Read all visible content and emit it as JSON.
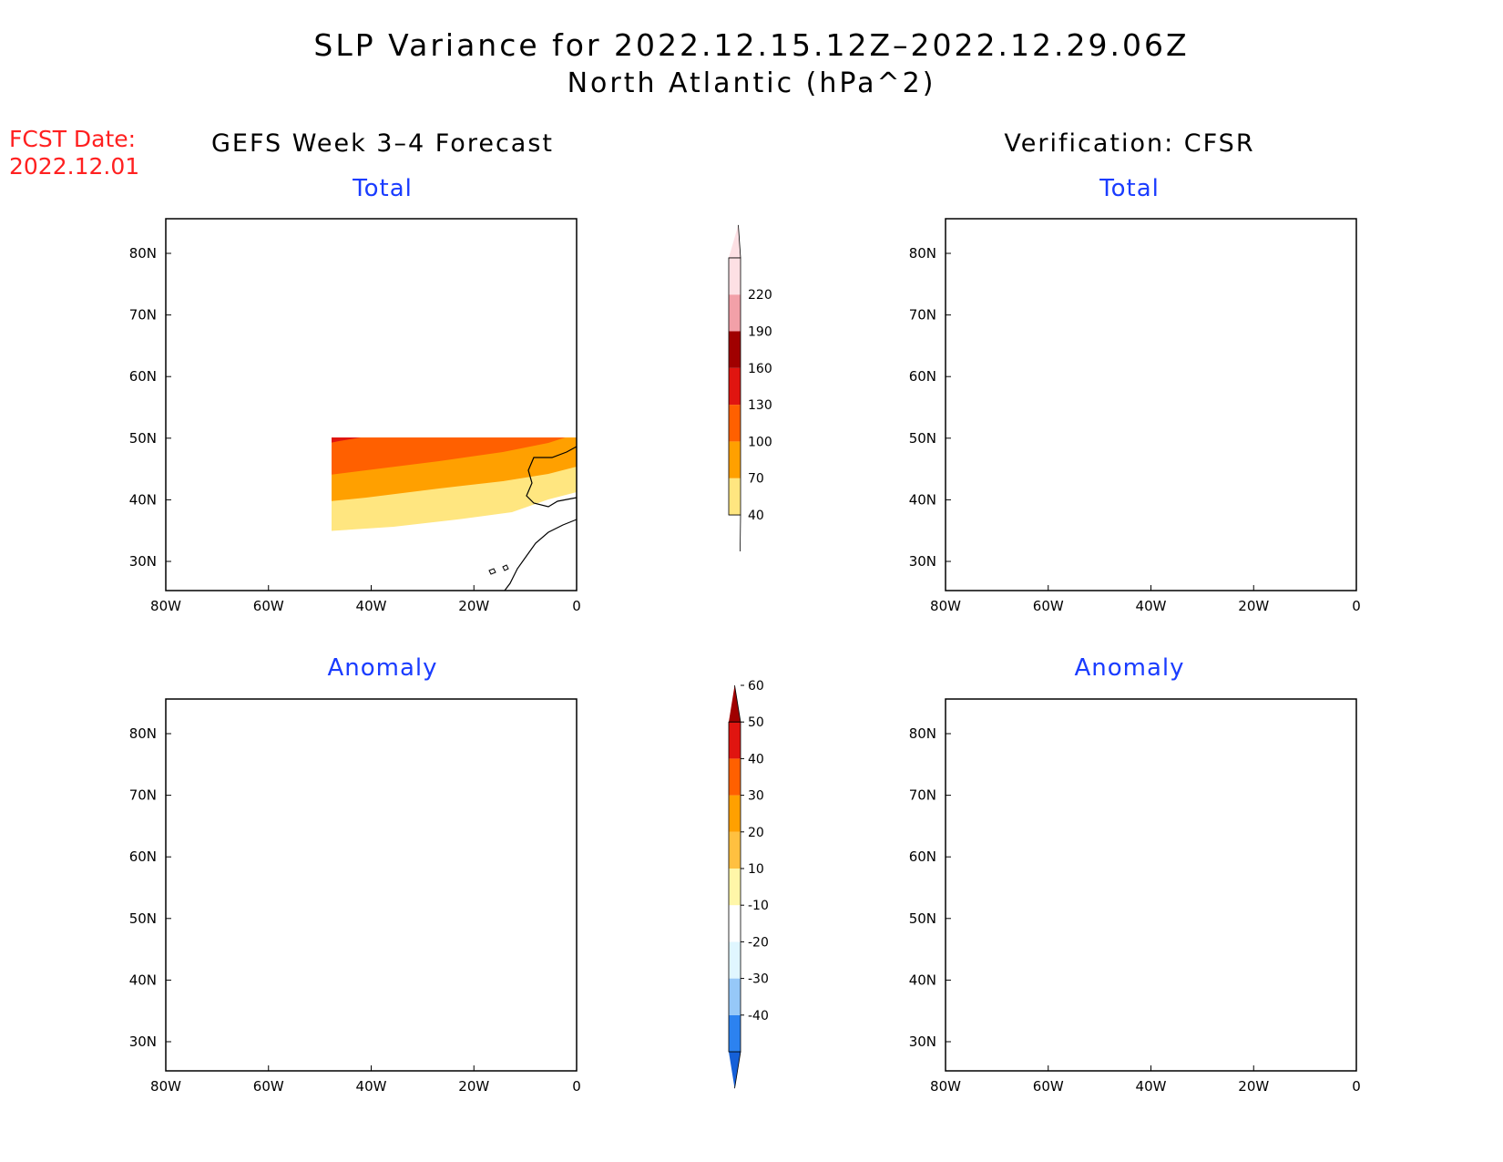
{
  "title": "SLP Variance for 2022.12.15.12Z–2022.12.29.06Z",
  "subtitle": "North Atlantic (hPa^2)",
  "fcst_date": {
    "label": "FCST Date:",
    "value": "2022.12.01"
  },
  "columns": {
    "left": "GEFS Week 3–4 Forecast",
    "right": "Verification: CFSR"
  },
  "panels": {
    "top_left": "Total",
    "top_right": "Total",
    "bottom_left": "Anomaly",
    "bottom_right": "Anomaly"
  },
  "axes": {
    "lon_labels": [
      "80W",
      "60W",
      "40W",
      "20W",
      "0"
    ],
    "lat_labels": [
      "30N",
      "40N",
      "50N",
      "60N",
      "70N",
      "80N"
    ]
  },
  "colorbar_total": {
    "labels": [
      "40",
      "70",
      "100",
      "130",
      "160",
      "190",
      "220"
    ],
    "colors": [
      "#ffe680",
      "#ffa000",
      "#ff6000",
      "#e01510",
      "#a00000",
      "#f2a0a8",
      "#fde0e4"
    ]
  },
  "colorbar_anomaly": {
    "labels": [
      "-40",
      "-30",
      "-20",
      "-10",
      "10",
      "20",
      "30",
      "40",
      "50",
      "60"
    ],
    "colors": [
      "#1560d8",
      "#2c82f0",
      "#96c8f8",
      "#e0f6ff",
      "#ffffff",
      "#fff6a8",
      "#ffc040",
      "#ffa000",
      "#ff6000",
      "#e01510",
      "#a00000"
    ]
  },
  "palette": {
    "white": "#ffffff",
    "y40": "#ffe680",
    "o70": "#ffa000",
    "o100": "#ff6000",
    "r130": "#e01510",
    "dr160": "#a00000",
    "p190": "#f2a0a8",
    "p220": "#fde0e4",
    "b40": "#1560d8",
    "b30": "#2c82f0",
    "b20": "#96c8f8",
    "b10": "#e0f6ff",
    "w10": "#fff6a8",
    "w20": "#ffc040",
    "w30": "#ffa000",
    "w40": "#ff6000",
    "w50": "#e01510",
    "w60": "#a00000"
  }
}
